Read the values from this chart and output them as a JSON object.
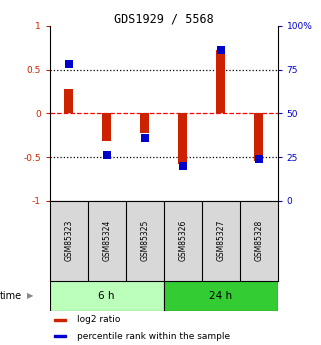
{
  "title": "GDS1929 / 5568",
  "samples": [
    "GSM85323",
    "GSM85324",
    "GSM85325",
    "GSM85326",
    "GSM85327",
    "GSM85328"
  ],
  "log2_ratio": [
    0.28,
    -0.32,
    -0.22,
    -0.58,
    0.72,
    -0.55
  ],
  "percentile_rank_pct": [
    78,
    26,
    36,
    20,
    86,
    24
  ],
  "ylim_left": [
    -1,
    1
  ],
  "ylim_right": [
    0,
    100
  ],
  "yticks_left": [
    -1,
    -0.5,
    0,
    0.5,
    1
  ],
  "yticks_right": [
    0,
    25,
    50,
    75,
    100
  ],
  "ytick_labels_left": [
    "-1",
    "-0.5",
    "0",
    "0.5",
    "1"
  ],
  "ytick_labels_right": [
    "0",
    "25",
    "50",
    "75",
    "100%"
  ],
  "hlines": [
    {
      "value": -0.5,
      "style": "dotted",
      "color": "black"
    },
    {
      "value": 0,
      "style": "dashed",
      "color": "red"
    },
    {
      "value": 0.5,
      "style": "dotted",
      "color": "black"
    }
  ],
  "bar_color": "#cc2200",
  "dot_color": "#0000cc",
  "bar_width": 0.25,
  "dot_size": 30,
  "group_6h_color": "#bbffbb",
  "group_24h_color": "#33cc33",
  "group_6h_label": "6 h",
  "group_24h_label": "24 h",
  "legend_entries": [
    "log2 ratio",
    "percentile rank within the sample"
  ],
  "time_label": "time",
  "bg_color": "#ffffff",
  "label_color_left": "#cc2200",
  "label_color_right": "#0000cc"
}
